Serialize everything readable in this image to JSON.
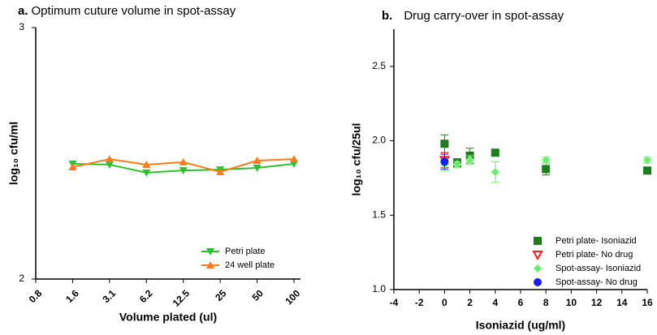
{
  "chart_data": [
    {
      "type": "line",
      "panel_label": "a.",
      "title": "Optimum cuture volume in spot-assay",
      "ylabel": "log₁₀ cfu/ml",
      "xlabel": "Volume plated (ul)",
      "categories": [
        "0.8",
        "1.6",
        "3.1",
        "6.2",
        "12.5",
        "25",
        "50",
        "100"
      ],
      "ylim": [
        2,
        3
      ],
      "yticks": [
        2,
        3
      ],
      "legend": "lower right",
      "series": [
        {
          "name": "Petri plate",
          "color": "#2ec02e",
          "marker": "triangle-down",
          "values": [
            null,
            2.458,
            2.455,
            2.423,
            2.432,
            2.435,
            2.442,
            2.458
          ]
        },
        {
          "name": "24 well plate",
          "color": "#ff7a1a",
          "marker": "triangle-up",
          "values": [
            null,
            2.445,
            2.477,
            2.455,
            2.465,
            2.426,
            2.471,
            2.477
          ]
        }
      ]
    },
    {
      "type": "scatter",
      "panel_label": "b.",
      "title": "Drug carry-over in spot-assay",
      "ylabel": "log₁₀ cfu/25ul",
      "xlabel": "Isoniazid (ug/ml)",
      "xlim": [
        -4,
        16
      ],
      "xticks": [
        -4,
        -2,
        0,
        2,
        4,
        6,
        8,
        10,
        12,
        14,
        16
      ],
      "ylim": [
        1,
        2.75
      ],
      "yticks": [
        {
          "value": 1,
          "label": "1.0"
        },
        1.5,
        {
          "value": 2,
          "label": "2.0"
        },
        2.5
      ],
      "legend": "lower right",
      "series": [
        {
          "name": "Petri plate- Isoniazid",
          "color": "#1e7b1e",
          "marker": "square",
          "x": [
            0,
            1,
            2,
            4,
            8,
            16
          ],
          "values": [
            1.98,
            1.85,
            1.9,
            1.92,
            1.81,
            1.8
          ],
          "errors": [
            0.06,
            0.03,
            0.05,
            0.02,
            0.04,
            0.02
          ]
        },
        {
          "name": "Petri plate- No drug",
          "color": "#ff1a1a",
          "marker": "triangle-open",
          "x": [
            0
          ],
          "values": [
            1.87
          ],
          "errors": [
            0.05
          ]
        },
        {
          "name": "Spot-assay- Isoniazid",
          "color": "#66ee66",
          "marker": "diamond",
          "x": [
            0,
            1,
            2,
            4,
            8,
            16
          ],
          "values": [
            1.84,
            1.84,
            1.87,
            1.79,
            1.87,
            1.87
          ],
          "errors": [
            0.04,
            0.02,
            0.03,
            0.07,
            0.02,
            0.02
          ]
        },
        {
          "name": "Spot-assay- No drug",
          "color": "#1a1aff",
          "marker": "circle",
          "x": [
            0
          ],
          "values": [
            1.86
          ],
          "errors": [
            0.05
          ]
        }
      ]
    }
  ]
}
